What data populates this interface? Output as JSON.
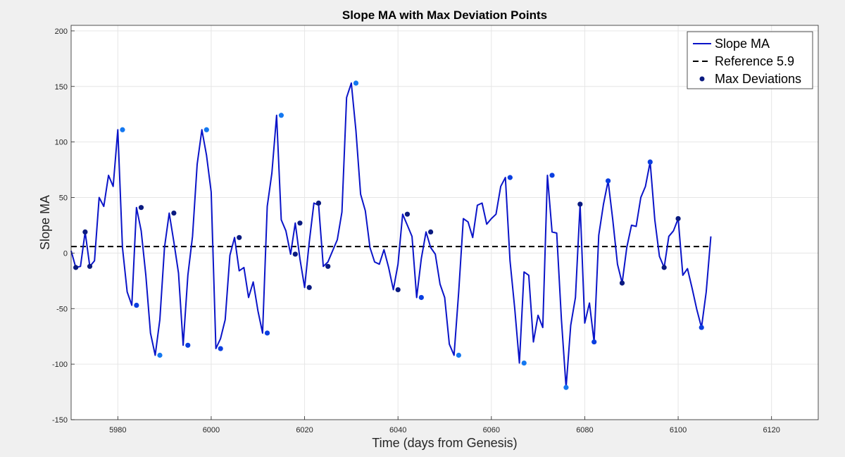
{
  "chart_data": {
    "type": "line",
    "title": "Slope MA with Max Deviation Points",
    "xlabel": "Time (days from Genesis)",
    "ylabel": "Slope MA",
    "xlim": [
      5970,
      6130
    ],
    "ylim": [
      -150,
      205
    ],
    "xticks": [
      5980,
      6000,
      6020,
      6040,
      6060,
      6080,
      6100,
      6120
    ],
    "yticks": [
      -150,
      -100,
      -50,
      0,
      50,
      100,
      150,
      200
    ],
    "grid": true,
    "legend_position": "top-right",
    "colors": {
      "line": "#0a14c8",
      "reference": "#000000",
      "markers_dark": "#0a1a80",
      "markers_mid": "#0a3ee0",
      "markers_light": "#1478f0",
      "plot_bg": "#ffffff",
      "figure_bg": "#f0f0f0",
      "grid": "#e6e6e6"
    },
    "series": [
      {
        "name": "Slope MA",
        "x": [
          5970,
          5971,
          5972,
          5973,
          5974,
          5975,
          5976,
          5977,
          5978,
          5979,
          5980,
          5981,
          5982,
          5983,
          5984,
          5985,
          5986,
          5987,
          5988,
          5989,
          5990,
          5991,
          5992,
          5993,
          5994,
          5995,
          5996,
          5997,
          5998,
          5999,
          6000,
          6001,
          6002,
          6003,
          6004,
          6005,
          6006,
          6007,
          6008,
          6009,
          6010,
          6011,
          6012,
          6013,
          6014,
          6015,
          6016,
          6017,
          6018,
          6019,
          6020,
          6021,
          6022,
          6023,
          6024,
          6025,
          6026,
          6027,
          6028,
          6029,
          6030,
          6031,
          6032,
          6033,
          6034,
          6035,
          6036,
          6037,
          6038,
          6039,
          6040,
          6041,
          6042,
          6043,
          6044,
          6045,
          6046,
          6047,
          6048,
          6049,
          6050,
          6051,
          6052,
          6053,
          6054,
          6055,
          6056,
          6057,
          6058,
          6059,
          6060,
          6061,
          6062,
          6063,
          6064,
          6065,
          6066,
          6067,
          6068,
          6069,
          6070,
          6071,
          6072,
          6073,
          6074,
          6075,
          6076,
          6077,
          6078,
          6079,
          6080,
          6081,
          6082,
          6083,
          6084,
          6085,
          6086,
          6087,
          6088,
          6089,
          6090,
          6091,
          6092,
          6093,
          6094,
          6095,
          6096,
          6097,
          6098,
          6099,
          6100,
          6101,
          6102,
          6103,
          6104,
          6105,
          6106,
          6107
        ],
        "y": [
          2,
          -13,
          -12,
          19,
          -12,
          -7,
          50,
          42,
          70,
          60,
          111,
          5,
          -35,
          -47,
          41,
          20,
          -20,
          -72,
          -92,
          -60,
          5,
          36,
          10,
          -18,
          -83,
          -20,
          15,
          80,
          111,
          88,
          55,
          -86,
          -77,
          -60,
          -2,
          14,
          -16,
          -13,
          -40,
          -26,
          -52,
          -72,
          42,
          72,
          124,
          30,
          20,
          -1,
          27,
          -5,
          -31,
          10,
          45,
          43,
          -12,
          -8,
          2,
          12,
          37,
          140,
          153,
          110,
          53,
          38,
          5,
          -8,
          -10,
          3,
          -13,
          -33,
          -10,
          35,
          25,
          15,
          -40,
          -5,
          19,
          5,
          -1,
          -28,
          -40,
          -82,
          -92,
          -35,
          31,
          28,
          14,
          43,
          45,
          26,
          31,
          35,
          60,
          68,
          -7,
          -50,
          -99,
          -17,
          -20,
          -80,
          -56,
          -67,
          70,
          19,
          18,
          -60,
          -121,
          -65,
          -40,
          44,
          -63,
          -45,
          -80,
          16,
          44,
          65,
          30,
          -10,
          -27,
          5,
          25,
          24,
          50,
          60,
          82,
          30,
          -3,
          -13,
          15,
          20,
          31,
          -20,
          -14,
          -32,
          -51,
          -67,
          -35,
          15
        ]
      },
      {
        "name": "Reference 5.9",
        "y": 5.9,
        "x_range": [
          5970,
          6107
        ]
      },
      {
        "name": "Max Deviations",
        "x": [
          5971,
          5973,
          5974,
          5981,
          5984,
          5985,
          5989,
          5992,
          5995,
          5999,
          6002,
          6006,
          6012,
          6015,
          6018,
          6019,
          6021,
          6023,
          6025,
          6031,
          6040,
          6042,
          6045,
          6047,
          6053,
          6064,
          6067,
          6073,
          6076,
          6079,
          6082,
          6085,
          6088,
          6094,
          6097,
          6100,
          6105
        ],
        "y": [
          -13,
          19,
          -12,
          111,
          -47,
          41,
          -92,
          36,
          -83,
          111,
          -86,
          14,
          -72,
          124,
          -1,
          27,
          -31,
          45,
          -12,
          153,
          -33,
          35,
          -40,
          19,
          -92,
          68,
          -99,
          70,
          -121,
          44,
          -80,
          65,
          -27,
          82,
          -13,
          31,
          -67
        ]
      }
    ]
  }
}
